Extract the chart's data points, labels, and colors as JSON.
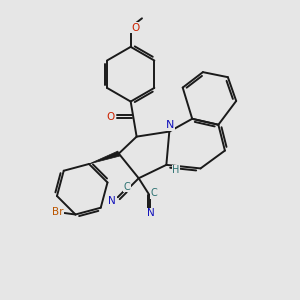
{
  "background_color": "#e6e6e6",
  "bond_color": "#1a1a1a",
  "bond_width": 1.4,
  "dbo": 0.055,
  "N_color": "#1111bb",
  "O_color": "#cc2200",
  "Br_color": "#bb5500",
  "CN_color": "#1111bb",
  "C_color": "#2a7070",
  "H_color": "#2a7070",
  "figsize": [
    3.0,
    3.0
  ],
  "dpi": 100,
  "xlim": [
    0,
    10
  ],
  "ylim": [
    0,
    10
  ]
}
